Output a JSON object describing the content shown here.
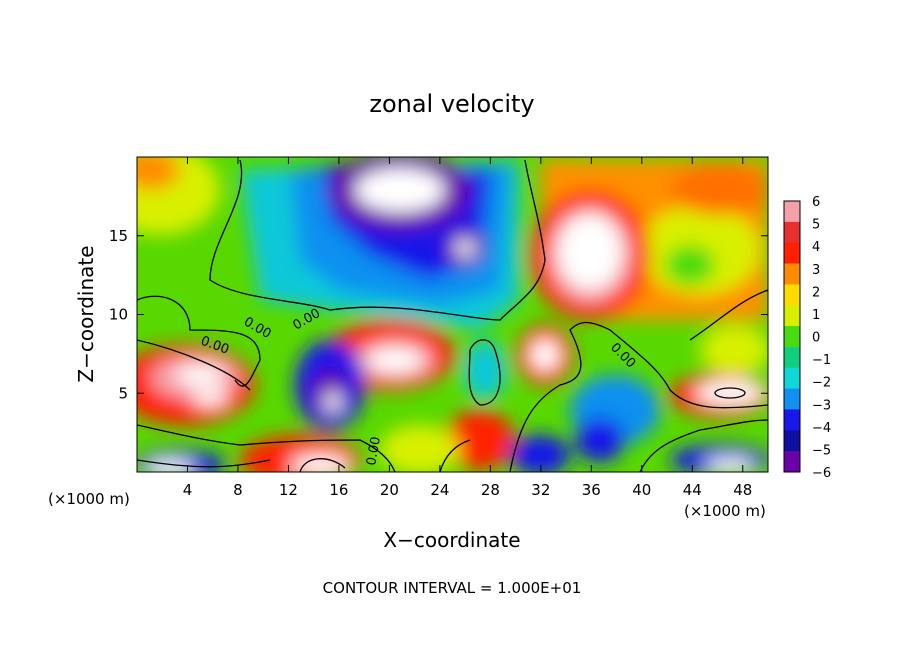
{
  "chart_data": {
    "type": "heatmap",
    "title": "zonal velocity",
    "xlabel": "X−coordinate",
    "ylabel": "Z−coordinate",
    "x_unit_left": "(×1000 m)",
    "x_unit_right": "(×1000 m)",
    "footer": "CONTOUR INTERVAL = 1.000E+01",
    "contour_label": "0.00",
    "xlim": [
      0,
      50
    ],
    "ylim": [
      0,
      20
    ],
    "x_ticks": [
      "4",
      "8",
      "12",
      "16",
      "20",
      "24",
      "28",
      "32",
      "36",
      "40",
      "44",
      "48"
    ],
    "x_tick_values": [
      4,
      8,
      12,
      16,
      20,
      24,
      28,
      32,
      36,
      40,
      44,
      48
    ],
    "y_ticks": [
      "5",
      "10",
      "15"
    ],
    "y_tick_values": [
      5,
      10,
      15
    ],
    "colorbar": {
      "labels": [
        "6",
        "5",
        "4",
        "3",
        "2",
        "1",
        "0",
        "−1",
        "−2",
        "−3",
        "−4",
        "−5",
        "−6"
      ],
      "values": [
        6,
        5,
        4,
        3,
        2,
        1,
        0,
        -1,
        -2,
        -3,
        -4,
        -5,
        -6
      ],
      "colors": [
        "#f4a0a8",
        "#e83030",
        "#ff2000",
        "#ff8c00",
        "#ffdc00",
        "#d8f000",
        "#48dc10",
        "#10d080",
        "#10d8d8",
        "#1090f0",
        "#1818e8",
        "#1010a0",
        "#6a00a8"
      ]
    },
    "features": [
      {
        "x": 5.5,
        "z": 5.8,
        "value": 6,
        "desc": "strong positive lobe"
      },
      {
        "x": 18,
        "z": 6.8,
        "value": 6,
        "desc": "positive core"
      },
      {
        "x": 35,
        "z": 13.5,
        "value": 6,
        "desc": "strong positive core"
      },
      {
        "x": 46,
        "z": 5,
        "value": 6,
        "desc": "positive lobe near right edge"
      },
      {
        "x": 22,
        "z": 18.5,
        "value": -6,
        "desc": "strong negative core aloft"
      },
      {
        "x": 26,
        "z": 14,
        "value": -6,
        "desc": "negative core"
      },
      {
        "x": 15,
        "z": 5,
        "value": -5,
        "desc": "negative cell"
      },
      {
        "x": 40,
        "z": 3,
        "value": -4,
        "desc": "negative area lower right"
      }
    ]
  }
}
